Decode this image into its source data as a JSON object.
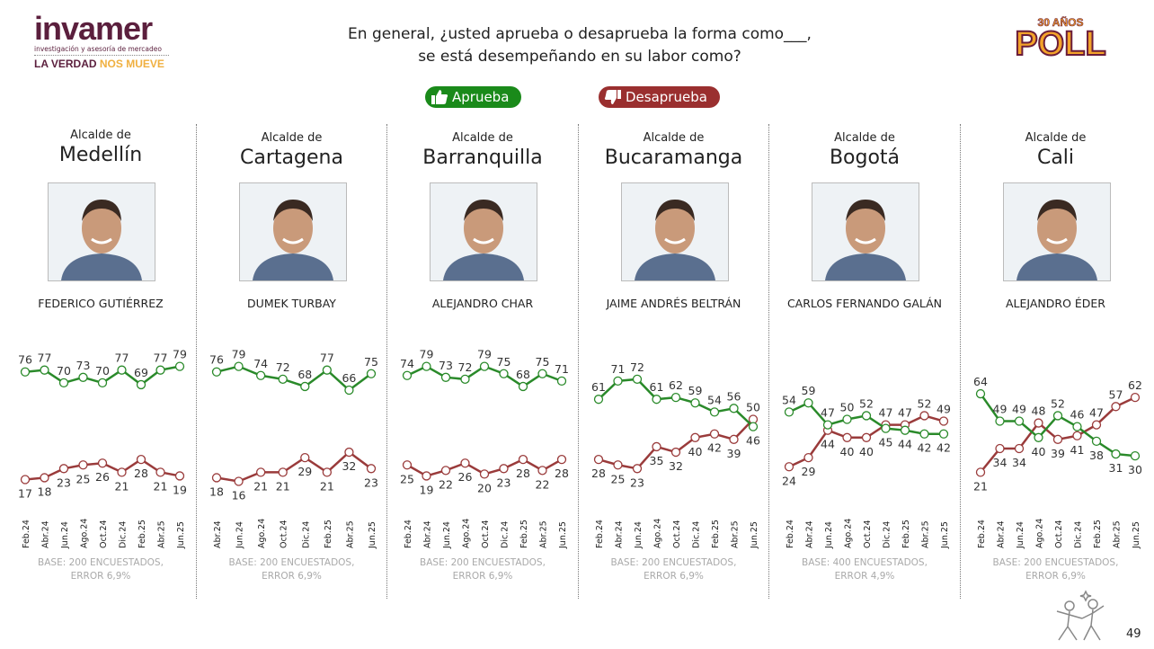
{
  "header": {
    "logo_left": {
      "brand": "invamer",
      "tagline": "investigación y asesoría de mercadeo",
      "slogan_a": "LA VERDAD ",
      "slogan_b": "NOS MUEVE"
    },
    "logo_right": {
      "years": "30 AÑOS",
      "brand": "POLL"
    },
    "question_line1": "En general, ¿usted aprueba o desaprueba la forma como___,",
    "question_line2": "se está desempeñando en su labor como?"
  },
  "legend": {
    "approve": "Aprueba",
    "disapprove": "Desaprueba"
  },
  "colors": {
    "approve": "#2a8a2a",
    "disapprove": "#9a3b3b"
  },
  "page_number": "49",
  "chart_data": [
    {
      "type": "line",
      "role": "Alcalde de",
      "city": "Medellín",
      "person": "FEDERICO GUTIÉRREZ",
      "ylim": [
        0,
        100
      ],
      "categories": [
        "Feb.24",
        "Abr.24",
        "Jun.24",
        "Ago.24",
        "Oct.24",
        "Dic.24",
        "Feb.25",
        "Abr.25",
        "Jun.25"
      ],
      "series": [
        {
          "name": "Aprueba",
          "values": [
            76,
            77,
            70,
            73,
            70,
            77,
            69,
            77,
            79
          ]
        },
        {
          "name": "Desaprueba",
          "values": [
            17,
            18,
            23,
            25,
            26,
            21,
            28,
            21,
            19
          ]
        }
      ],
      "base_line1": "BASE: 200 ENCUESTADOS,",
      "base_line2": "ERROR 6,9%"
    },
    {
      "type": "line",
      "role": "Alcalde de",
      "city": "Cartagena",
      "person": "DUMEK TURBAY",
      "ylim": [
        0,
        100
      ],
      "categories": [
        "Abr.24",
        "Jun.24",
        "Ago.24",
        "Oct.24",
        "Dic.24",
        "Feb.25",
        "Abr.25",
        "Jun.25"
      ],
      "series": [
        {
          "name": "Aprueba",
          "values": [
            76,
            79,
            74,
            72,
            68,
            77,
            66,
            75
          ]
        },
        {
          "name": "Desaprueba",
          "values": [
            18,
            16,
            21,
            21,
            29,
            21,
            32,
            23
          ]
        }
      ],
      "base_line1": "BASE: 200 ENCUESTADOS,",
      "base_line2": "ERROR 6,9%"
    },
    {
      "type": "line",
      "role": "Alcalde de",
      "city": "Barranquilla",
      "person": "ALEJANDRO CHAR",
      "ylim": [
        0,
        100
      ],
      "categories": [
        "Feb.24",
        "Abr.24",
        "Jun.24",
        "Ago.24",
        "Oct.24",
        "Dic.24",
        "Feb.25",
        "Abr.25",
        "Jun.25"
      ],
      "series": [
        {
          "name": "Aprueba",
          "values": [
            74,
            79,
            73,
            72,
            79,
            75,
            68,
            75,
            71
          ]
        },
        {
          "name": "Desaprueba",
          "values": [
            25,
            19,
            22,
            26,
            20,
            23,
            28,
            22,
            28
          ]
        }
      ],
      "base_line1": "BASE: 200 ENCUESTADOS,",
      "base_line2": "ERROR 6,9%"
    },
    {
      "type": "line",
      "role": "Alcalde de",
      "city": "Bucaramanga",
      "person": "JAIME ANDRÉS BELTRÁN",
      "ylim": [
        0,
        100
      ],
      "categories": [
        "Feb.24",
        "Abr.24",
        "Jun.24",
        "Ago.24",
        "Oct.24",
        "Dic.24",
        "Feb.25",
        "Abr.25",
        "Jun.25"
      ],
      "series": [
        {
          "name": "Aprueba",
          "values": [
            61,
            71,
            72,
            61,
            62,
            59,
            54,
            56,
            46
          ]
        },
        {
          "name": "Desaprueba",
          "values": [
            28,
            25,
            23,
            35,
            32,
            40,
            42,
            39,
            50
          ]
        }
      ],
      "base_line1": "BASE: 200 ENCUESTADOS,",
      "base_line2": "ERROR 6,9%"
    },
    {
      "type": "line",
      "role": "Alcalde de",
      "city": "Bogotá",
      "person": "CARLOS FERNANDO GALÁN",
      "ylim": [
        0,
        100
      ],
      "categories": [
        "Feb.24",
        "Abr.24",
        "Jun.24",
        "Ago.24",
        "Oct.24",
        "Dic.24",
        "Feb.25",
        "Abr.25",
        "Jun.25"
      ],
      "series": [
        {
          "name": "Aprueba",
          "values": [
            54,
            59,
            47,
            50,
            52,
            45,
            44,
            42,
            42
          ]
        },
        {
          "name": "Desaprueba",
          "values": [
            24,
            29,
            44,
            40,
            40,
            47,
            47,
            52,
            49
          ]
        }
      ],
      "base_line1": "BASE: 400 ENCUESTADOS,",
      "base_line2": "ERROR 4,9%"
    },
    {
      "type": "line",
      "role": "Alcalde de",
      "city": "Cali",
      "person": "ALEJANDRO ÉDER",
      "ylim": [
        0,
        100
      ],
      "categories": [
        "Feb.24",
        "Abr.24",
        "Jun.24",
        "Ago.24",
        "Oct.24",
        "Dic.24",
        "Feb.25",
        "Abr.25",
        "Jun.25"
      ],
      "series": [
        {
          "name": "Aprueba",
          "values": [
            64,
            49,
            49,
            40,
            52,
            46,
            38,
            31,
            30
          ]
        },
        {
          "name": "Desaprueba",
          "values": [
            21,
            34,
            34,
            48,
            39,
            41,
            47,
            57,
            62
          ]
        }
      ],
      "base_line1": "BASE: 200 ENCUESTADOS,",
      "base_line2": "ERROR 6,9%"
    }
  ]
}
